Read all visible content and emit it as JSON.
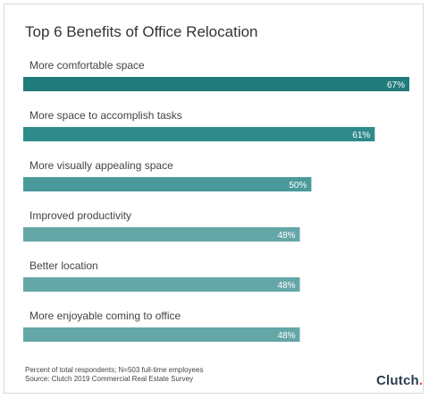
{
  "chart_data": {
    "type": "bar",
    "orientation": "horizontal",
    "title": "Top 6 Benefits of Office Relocation",
    "categories": [
      "More comfortable space",
      "More space to accomplish tasks",
      "More visually appealing space",
      "Improved productivity",
      "Better location",
      "More enjoyable coming to office"
    ],
    "values": [
      67,
      61,
      50,
      48,
      48,
      48
    ],
    "value_labels": [
      "67%",
      "61%",
      "50%",
      "48%",
      "48%",
      "48%"
    ],
    "colors": [
      "#207b7c",
      "#2f8a8b",
      "#4a9a9b",
      "#65a6a7",
      "#65a6a7",
      "#65a6a7"
    ],
    "xlim": [
      0,
      67
    ],
    "grid": false,
    "legend": "none"
  },
  "footnote": {
    "line1": "Percent of total respondents; N=503 full-time employees",
    "line2": "Source: Clutch 2019 Commercial Real Estate Survey"
  },
  "logo": {
    "text_main": "Clutc",
    "text_end": "h",
    "dot_color": "#ef4b3f"
  }
}
